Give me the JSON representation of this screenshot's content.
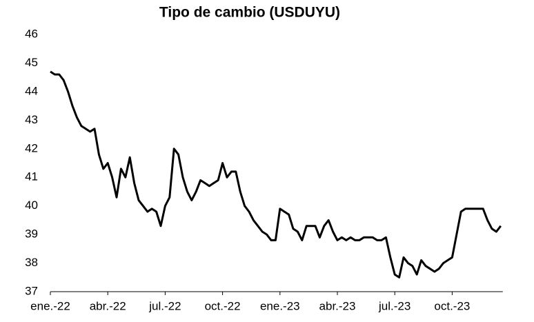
{
  "chart_data": {
    "type": "line",
    "title": "Tipo de cambio (USDUYU)",
    "categories": [
      "ene.-22",
      null,
      null,
      null,
      null,
      null,
      null,
      null,
      null,
      null,
      null,
      null,
      null,
      "abr.-22",
      null,
      null,
      null,
      null,
      null,
      null,
      null,
      null,
      null,
      null,
      null,
      null,
      "jul.-22",
      null,
      null,
      null,
      null,
      null,
      null,
      null,
      null,
      null,
      null,
      null,
      null,
      "oct.-22",
      null,
      null,
      null,
      null,
      null,
      null,
      null,
      null,
      null,
      null,
      null,
      null,
      "ene.-23",
      null,
      null,
      null,
      null,
      null,
      null,
      null,
      null,
      null,
      null,
      null,
      null,
      "abr.-23",
      null,
      null,
      null,
      null,
      null,
      null,
      null,
      null,
      null,
      null,
      null,
      null,
      "jul.-23",
      null,
      null,
      null,
      null,
      null,
      null,
      null,
      null,
      null,
      null,
      null,
      null,
      "oct.-23",
      null,
      null,
      null,
      null,
      null,
      null,
      null,
      null,
      null,
      null,
      null
    ],
    "values": [
      44.7,
      44.6,
      44.6,
      44.4,
      44.0,
      43.5,
      43.1,
      42.8,
      42.7,
      42.6,
      42.7,
      41.8,
      41.3,
      41.5,
      41.0,
      40.3,
      41.3,
      41.0,
      41.7,
      40.8,
      40.2,
      40.0,
      39.8,
      39.9,
      39.8,
      39.3,
      40.0,
      40.3,
      42.0,
      41.8,
      41.0,
      40.5,
      40.2,
      40.5,
      40.9,
      40.8,
      40.7,
      40.8,
      40.9,
      41.5,
      41.0,
      41.2,
      41.2,
      40.5,
      40.0,
      39.8,
      39.5,
      39.3,
      39.1,
      39.0,
      38.8,
      38.8,
      39.9,
      39.8,
      39.7,
      39.2,
      39.1,
      38.8,
      39.3,
      39.3,
      39.3,
      38.9,
      39.3,
      39.5,
      39.1,
      38.8,
      38.9,
      38.8,
      38.9,
      38.8,
      38.8,
      38.9,
      38.9,
      38.9,
      38.8,
      38.8,
      38.9,
      38.2,
      37.6,
      37.5,
      38.2,
      38.0,
      37.9,
      37.6,
      38.1,
      37.9,
      37.8,
      37.7,
      37.8,
      38.0,
      38.1,
      38.2,
      39.0,
      39.8,
      39.9,
      39.9,
      39.9,
      39.9,
      39.9,
      39.5,
      39.2,
      39.1,
      39.3
    ],
    "color": "#000000",
    "ylim": [
      37,
      46
    ],
    "yticks": [
      37,
      38,
      39,
      40,
      41,
      42,
      43,
      44,
      45,
      46
    ]
  }
}
